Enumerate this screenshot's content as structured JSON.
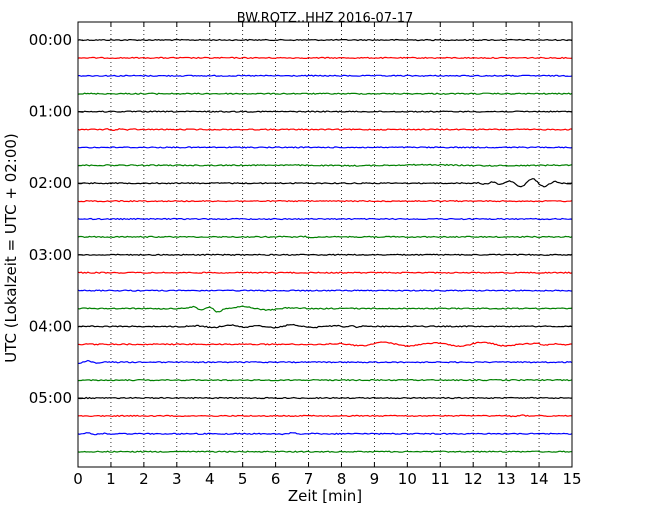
{
  "chart_data": {
    "type": "line",
    "title": "BW.ROTZ..HHZ 2016-07-17",
    "xlabel": "Zeit  [min]",
    "ylabel": "UTC (Lokalzeit = UTC + 02:00)",
    "xlim": [
      0,
      15
    ],
    "x_ticks": [
      "0",
      "1",
      "2",
      "3",
      "4",
      "5",
      "6",
      "7",
      "8",
      "9",
      "10",
      "11",
      "12",
      "13",
      "14",
      "15"
    ],
    "y_ticks": [
      "00:00",
      "01:00",
      "02:00",
      "03:00",
      "04:00",
      "05:00"
    ],
    "grid": "vertical dotted",
    "trace_colors": [
      "#000000",
      "#ff0000",
      "#0000ff",
      "#008000"
    ],
    "traces": [
      {
        "start": "00:00",
        "events": []
      },
      {
        "start": "00:15",
        "events": []
      },
      {
        "start": "00:30",
        "events": []
      },
      {
        "start": "00:45",
        "events": [
          [
            2.2,
            0.3,
            0.4
          ]
        ]
      },
      {
        "start": "01:00",
        "events": []
      },
      {
        "start": "01:15",
        "events": [
          [
            1.3,
            0.4,
            0.6
          ]
        ]
      },
      {
        "start": "01:30",
        "events": [
          [
            14.0,
            0.5,
            0.3
          ]
        ]
      },
      {
        "start": "01:45",
        "events": [
          [
            10.5,
            4.5,
            0.5
          ]
        ]
      },
      {
        "start": "02:00",
        "events": [
          [
            12.6,
            0.5,
            1.2
          ],
          [
            13.8,
            0.7,
            4.5
          ]
        ]
      },
      {
        "start": "02:15",
        "events": []
      },
      {
        "start": "02:30",
        "events": []
      },
      {
        "start": "02:45",
        "events": [
          [
            6.8,
            0.6,
            0.5
          ]
        ]
      },
      {
        "start": "03:00",
        "events": []
      },
      {
        "start": "03:15",
        "events": []
      },
      {
        "start": "03:30",
        "events": []
      },
      {
        "start": "03:45",
        "events": [
          [
            4.0,
            0.5,
            2.5
          ],
          [
            5.0,
            1.5,
            2.0
          ]
        ]
      },
      {
        "start": "04:00",
        "events": [
          [
            4.6,
            1.0,
            1.5
          ],
          [
            6.5,
            1.2,
            1.5
          ],
          [
            8.3,
            0.4,
            0.8
          ]
        ]
      },
      {
        "start": "04:15",
        "events": [
          [
            9.3,
            1.4,
            2.0
          ],
          [
            12.3,
            1.4,
            2.0
          ],
          [
            14.5,
            0.6,
            0.8
          ]
        ]
      },
      {
        "start": "04:30",
        "events": [
          [
            0.3,
            0.6,
            1.2
          ]
        ]
      },
      {
        "start": "04:45",
        "events": []
      },
      {
        "start": "05:00",
        "events": []
      },
      {
        "start": "05:15",
        "events": [
          [
            13.5,
            0.6,
            0.5
          ]
        ]
      },
      {
        "start": "05:30",
        "events": [
          [
            0.3,
            0.5,
            0.8
          ],
          [
            6.5,
            0.6,
            0.8
          ]
        ]
      },
      {
        "start": "05:45",
        "events": []
      }
    ]
  }
}
